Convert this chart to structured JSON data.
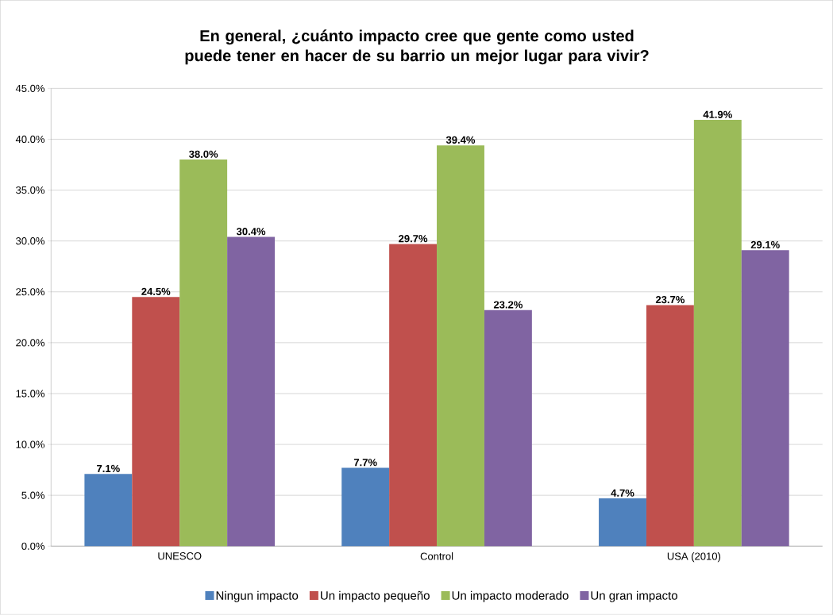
{
  "chart_data": {
    "type": "bar",
    "title": "En general, ¿cuánto impacto cree que gente como usted puede tener en hacer de su barrio un mejor lugar para vivir?",
    "categories": [
      "UNESCO",
      "Control",
      "USA (2010)"
    ],
    "series": [
      {
        "name": "Ningun impacto",
        "color": "#4f81bd",
        "values": [
          7.1,
          7.7,
          4.7
        ],
        "value_labels": [
          "7.1%",
          "7.7%",
          "4.7%"
        ]
      },
      {
        "name": "Un impacto pequeño",
        "color": "#c0504d",
        "values": [
          24.5,
          29.7,
          23.7
        ],
        "value_labels": [
          "24.5%",
          "29.7%",
          "23.7%"
        ]
      },
      {
        "name": "Un impacto moderado",
        "color": "#9bbb59",
        "values": [
          38.0,
          39.4,
          41.9
        ],
        "value_labels": [
          "38.0%",
          "39.4%",
          "41.9%"
        ]
      },
      {
        "name": "Un gran impacto",
        "color": "#8064a2",
        "values": [
          30.4,
          23.2,
          29.1
        ],
        "value_labels": [
          "30.4%",
          "23.2%",
          "29.1%"
        ]
      }
    ],
    "ylim": [
      0,
      45
    ],
    "yticks": [
      {
        "value": 0,
        "label": "0.0%"
      },
      {
        "value": 5,
        "label": "5.0%"
      },
      {
        "value": 10,
        "label": "10.0%"
      },
      {
        "value": 15,
        "label": "15.0%"
      },
      {
        "value": 20,
        "label": "20.0%"
      },
      {
        "value": 25,
        "label": "25.0%"
      },
      {
        "value": 30,
        "label": "30.0%"
      },
      {
        "value": 35,
        "label": "35.0%"
      },
      {
        "value": 40,
        "label": "40.0%"
      },
      {
        "value": 45,
        "label": "45.0%"
      }
    ],
    "grid": "y",
    "legend": "bottom"
  }
}
